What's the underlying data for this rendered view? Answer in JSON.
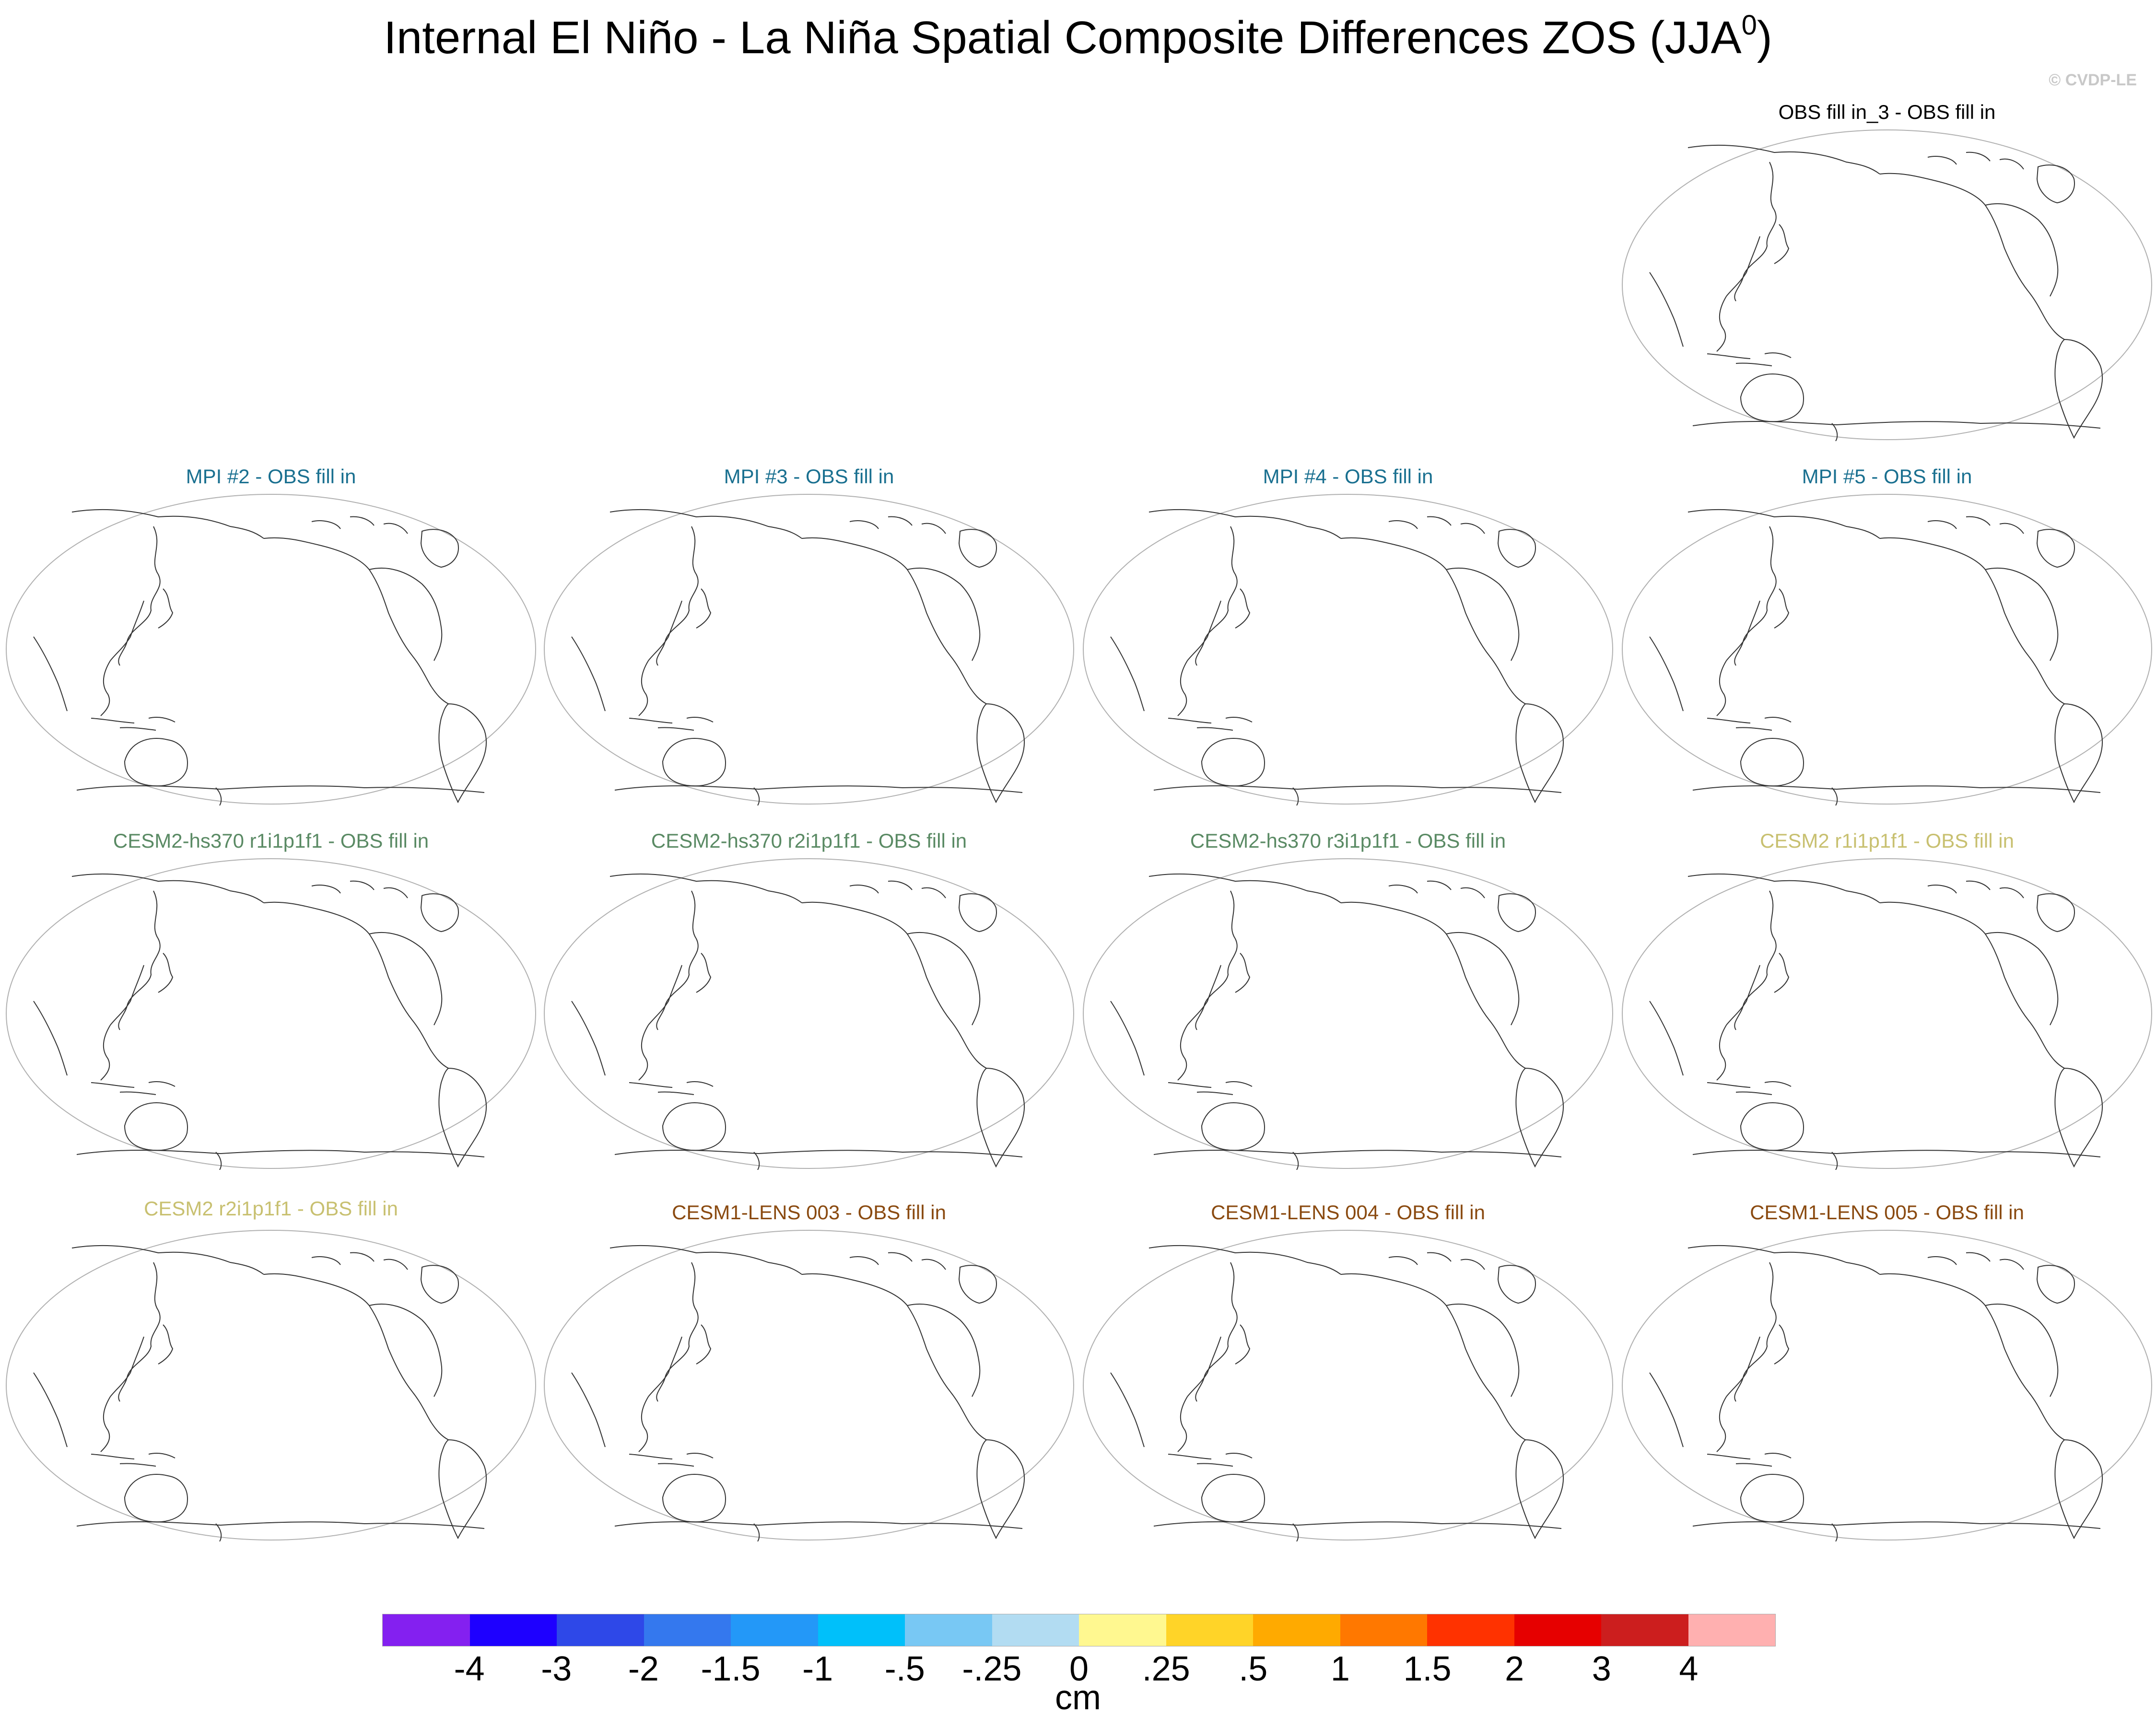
{
  "title": {
    "text": "Internal El Niño - La Niña Spatial Composite Differences ZOS (JJA",
    "superscript": "0",
    "suffix": ")"
  },
  "copyright": "© CVDP-LE",
  "colors": {
    "obs_title": "#000000",
    "mpi_title": "#1a7090",
    "cesm2hs_title": "#5a8a64",
    "cesm2_title": "#c8c070",
    "lens_title": "#8a4a10",
    "map_outline": "#b0b0b0",
    "coastline": "#333333"
  },
  "panels": [
    {
      "title": "OBS fill in_3 - OBS fill in",
      "group": "obs"
    },
    {
      "title": "MPI #2 - OBS fill in",
      "group": "mpi"
    },
    {
      "title": "MPI #3 - OBS fill in",
      "group": "mpi"
    },
    {
      "title": "MPI #4 - OBS fill in",
      "group": "mpi"
    },
    {
      "title": "MPI #5 - OBS fill in",
      "group": "mpi"
    },
    {
      "title": "CESM2-hs370 r1i1p1f1 - OBS fill in",
      "group": "cesm2hs"
    },
    {
      "title": "CESM2-hs370 r2i1p1f1 - OBS fill in",
      "group": "cesm2hs"
    },
    {
      "title": "CESM2-hs370 r3i1p1f1 - OBS fill in",
      "group": "cesm2hs"
    },
    {
      "title": "CESM2 r1i1p1f1 - OBS fill in",
      "group": "cesm2"
    },
    {
      "title": "CESM2 r2i1p1f1 - OBS fill in",
      "group": "cesm2"
    },
    {
      "title": "CESM1-LENS 003 - OBS fill in",
      "group": "lens"
    },
    {
      "title": "CESM1-LENS 004 - OBS fill in",
      "group": "lens"
    },
    {
      "title": "CESM1-LENS 005 - OBS fill in",
      "group": "lens"
    }
  ],
  "colorbar": {
    "colors": [
      "#8420f0",
      "#1e00ff",
      "#2e48e8",
      "#3478ee",
      "#2398f8",
      "#00c0fa",
      "#78c8f4",
      "#b2dcf2",
      "#fff890",
      "#ffd428",
      "#ffaa00",
      "#ff7800",
      "#ff3200",
      "#e60000",
      "#cc1e1e",
      "#ffb0b0"
    ],
    "labels": [
      "-4",
      "-3",
      "-2",
      "-1.5",
      "-1",
      "-.5",
      "-.25",
      "0",
      ".25",
      ".5",
      "1",
      "1.5",
      "2",
      "3",
      "4"
    ],
    "units": "cm"
  }
}
